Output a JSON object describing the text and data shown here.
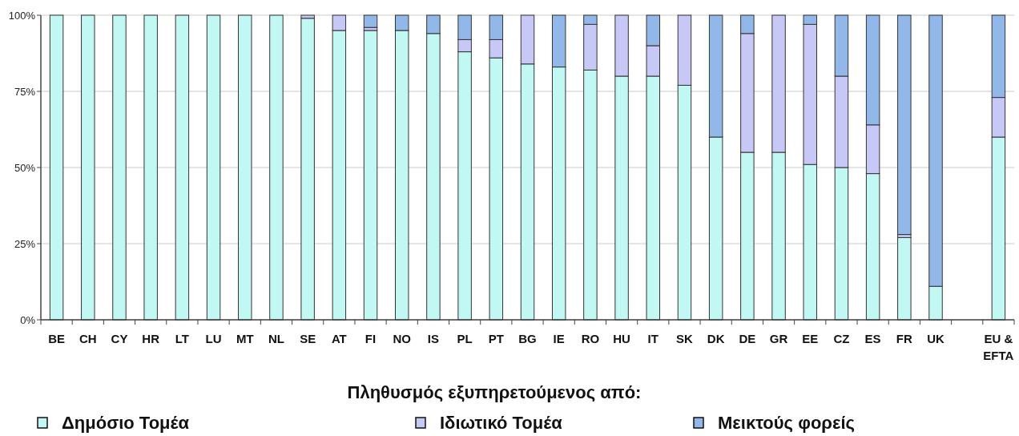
{
  "chart_data": {
    "type": "bar",
    "stacked": true,
    "categories": [
      "BE",
      "CH",
      "CY",
      "HR",
      "LT",
      "LU",
      "MT",
      "NL",
      "SE",
      "AT",
      "FI",
      "NO",
      "IS",
      "PL",
      "PT",
      "BG",
      "IE",
      "RO",
      "HU",
      "IT",
      "SK",
      "DK",
      "DE",
      "GR",
      "EE",
      "CZ",
      "ES",
      "FR",
      "UK",
      null,
      "EU & EFTA"
    ],
    "series": [
      {
        "name": "Δημόσιο Τομέα",
        "color": "#c2f8f4",
        "values": [
          100,
          100,
          100,
          100,
          100,
          100,
          100,
          100,
          99,
          95,
          95,
          95,
          94,
          88,
          86,
          84,
          83,
          82,
          80,
          80,
          77,
          60,
          55,
          55,
          51,
          50,
          48,
          27,
          11,
          null,
          60
        ]
      },
      {
        "name": "Ιδιωτικό Τομέα",
        "color": "#c8c8f6",
        "values": [
          0,
          0,
          0,
          0,
          0,
          0,
          0,
          0,
          1,
          5,
          1,
          0,
          0,
          4,
          6,
          16,
          0,
          15,
          20,
          10,
          23,
          0,
          39,
          45,
          46,
          30,
          16,
          1,
          0,
          null,
          13
        ]
      },
      {
        "name": "Μεικτούς φορείς",
        "color": "#92b8ea",
        "values": [
          0,
          0,
          0,
          0,
          0,
          0,
          0,
          0,
          0,
          0,
          4,
          5,
          6,
          8,
          8,
          0,
          17,
          3,
          0,
          10,
          0,
          40,
          6,
          0,
          3,
          20,
          36,
          72,
          89,
          null,
          27
        ]
      }
    ],
    "ylim": [
      0,
      100
    ],
    "yticks": [
      {
        "value": 0,
        "label": "0%"
      },
      {
        "value": 25,
        "label": "25%"
      },
      {
        "value": 50,
        "label": "50%"
      },
      {
        "value": 75,
        "label": "75%"
      },
      {
        "value": 100,
        "label": "100%"
      }
    ],
    "grid": "y",
    "legend": "bottom",
    "legend_title": "Πληθυσμός εξυπηρετούμενος από:"
  }
}
